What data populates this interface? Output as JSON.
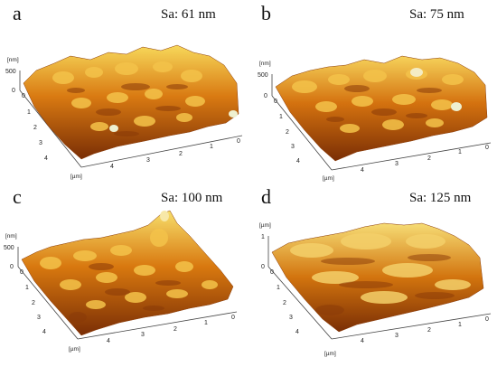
{
  "panels": [
    {
      "id": "a",
      "label": "a",
      "sa_text": "Sa: 61 nm",
      "z_unit": "[nm]",
      "z_ticks": [
        "500",
        "0"
      ],
      "x_unit": "[µm]",
      "left_ticks": [
        "0",
        "1",
        "2",
        "3",
        "4"
      ],
      "bottom_ticks": [
        "4",
        "3",
        "2",
        "1",
        "0"
      ],
      "colors": {
        "dark": "#7a2e05",
        "mid": "#c8640e",
        "light": "#f0a11c",
        "peak": "#f7e27a"
      }
    },
    {
      "id": "b",
      "label": "b",
      "sa_text": "Sa: 75 nm",
      "z_unit": "[nm]",
      "z_ticks": [
        "500",
        "0"
      ],
      "x_unit": "[µm]",
      "left_ticks": [
        "0",
        "1",
        "2",
        "3",
        "4"
      ],
      "bottom_ticks": [
        "4",
        "3",
        "2",
        "1",
        "0"
      ],
      "colors": {
        "dark": "#7a2e05",
        "mid": "#c8640e",
        "light": "#f0a11c",
        "peak": "#f7e27a"
      }
    },
    {
      "id": "c",
      "label": "c",
      "sa_text": "Sa: 100 nm",
      "z_unit": "[nm]",
      "z_ticks": [
        "500",
        "0"
      ],
      "x_unit": "[µm]",
      "left_ticks": [
        "0",
        "1",
        "2",
        "3",
        "4"
      ],
      "bottom_ticks": [
        "4",
        "3",
        "2",
        "1",
        "0"
      ],
      "colors": {
        "dark": "#7a2e05",
        "mid": "#c8640e",
        "light": "#f0a11c",
        "peak": "#f7e27a"
      }
    },
    {
      "id": "d",
      "label": "d",
      "sa_text": "Sa: 125 nm",
      "z_unit": "[µm]",
      "z_ticks": [
        "1",
        "0"
      ],
      "x_unit": "[µm]",
      "left_ticks": [
        "0",
        "1",
        "2",
        "3",
        "4"
      ],
      "bottom_ticks": [
        "4",
        "3",
        "2",
        "1",
        "0"
      ],
      "colors": {
        "dark": "#7a2e05",
        "mid": "#c8640e",
        "light": "#f0a11c",
        "peak": "#f7e27a"
      }
    }
  ]
}
